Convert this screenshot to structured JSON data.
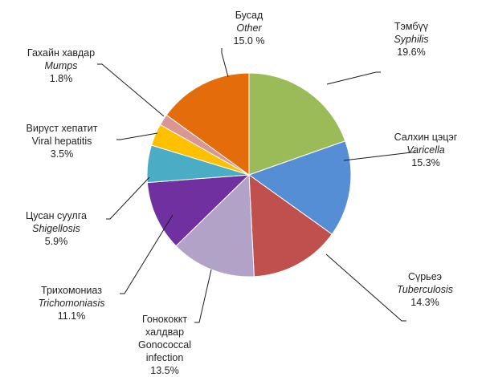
{
  "chart_data": {
    "type": "pie",
    "start_angle_deg": 0,
    "direction": "clockwise",
    "slices": [
      {
        "lines": [
          "Тэмбүү"
        ],
        "italic_line": "Syphilis",
        "pct": "19.6%",
        "value": 19.6,
        "color": "#9bbb59"
      },
      {
        "lines": [
          "Салхин цэцэг"
        ],
        "italic_line": "Varicella",
        "pct": "15.3%",
        "value": 15.3,
        "color": "#558ed5"
      },
      {
        "lines": [
          "Сүрьеэ"
        ],
        "italic_line": "Tuberculosis",
        "pct": "14.3%",
        "value": 14.3,
        "color": "#c0504d"
      },
      {
        "lines": [
          "Гонококкт",
          "халдвар",
          "Gonococcal",
          "infection"
        ],
        "italic_line": "",
        "pct": "13.5%",
        "value": 13.5,
        "color": "#b3a2c7"
      },
      {
        "lines": [
          "Трихомониаз"
        ],
        "italic_line": "Trichomoniasis",
        "pct": "11.1%",
        "value": 11.1,
        "color": "#7030a0"
      },
      {
        "lines": [
          "Цусан суулга"
        ],
        "italic_line": "Shigellosis",
        "pct": "5.9%",
        "value": 5.9,
        "color": "#4bacc6"
      },
      {
        "lines": [
          "Вирүст хепатит",
          "Viral hepatitis"
        ],
        "italic_line": "",
        "pct": "3.5%",
        "value": 3.5,
        "color": "#ffc000"
      },
      {
        "lines": [
          "Гахайн хавдар"
        ],
        "italic_line": "Mumps",
        "pct": "1.8%",
        "value": 1.8,
        "color": "#d99694"
      },
      {
        "lines": [
          "Бусад"
        ],
        "italic_line": "Other",
        "pct": "15.0 %",
        "value": 15.0,
        "color": "#e46c0a"
      }
    ]
  }
}
